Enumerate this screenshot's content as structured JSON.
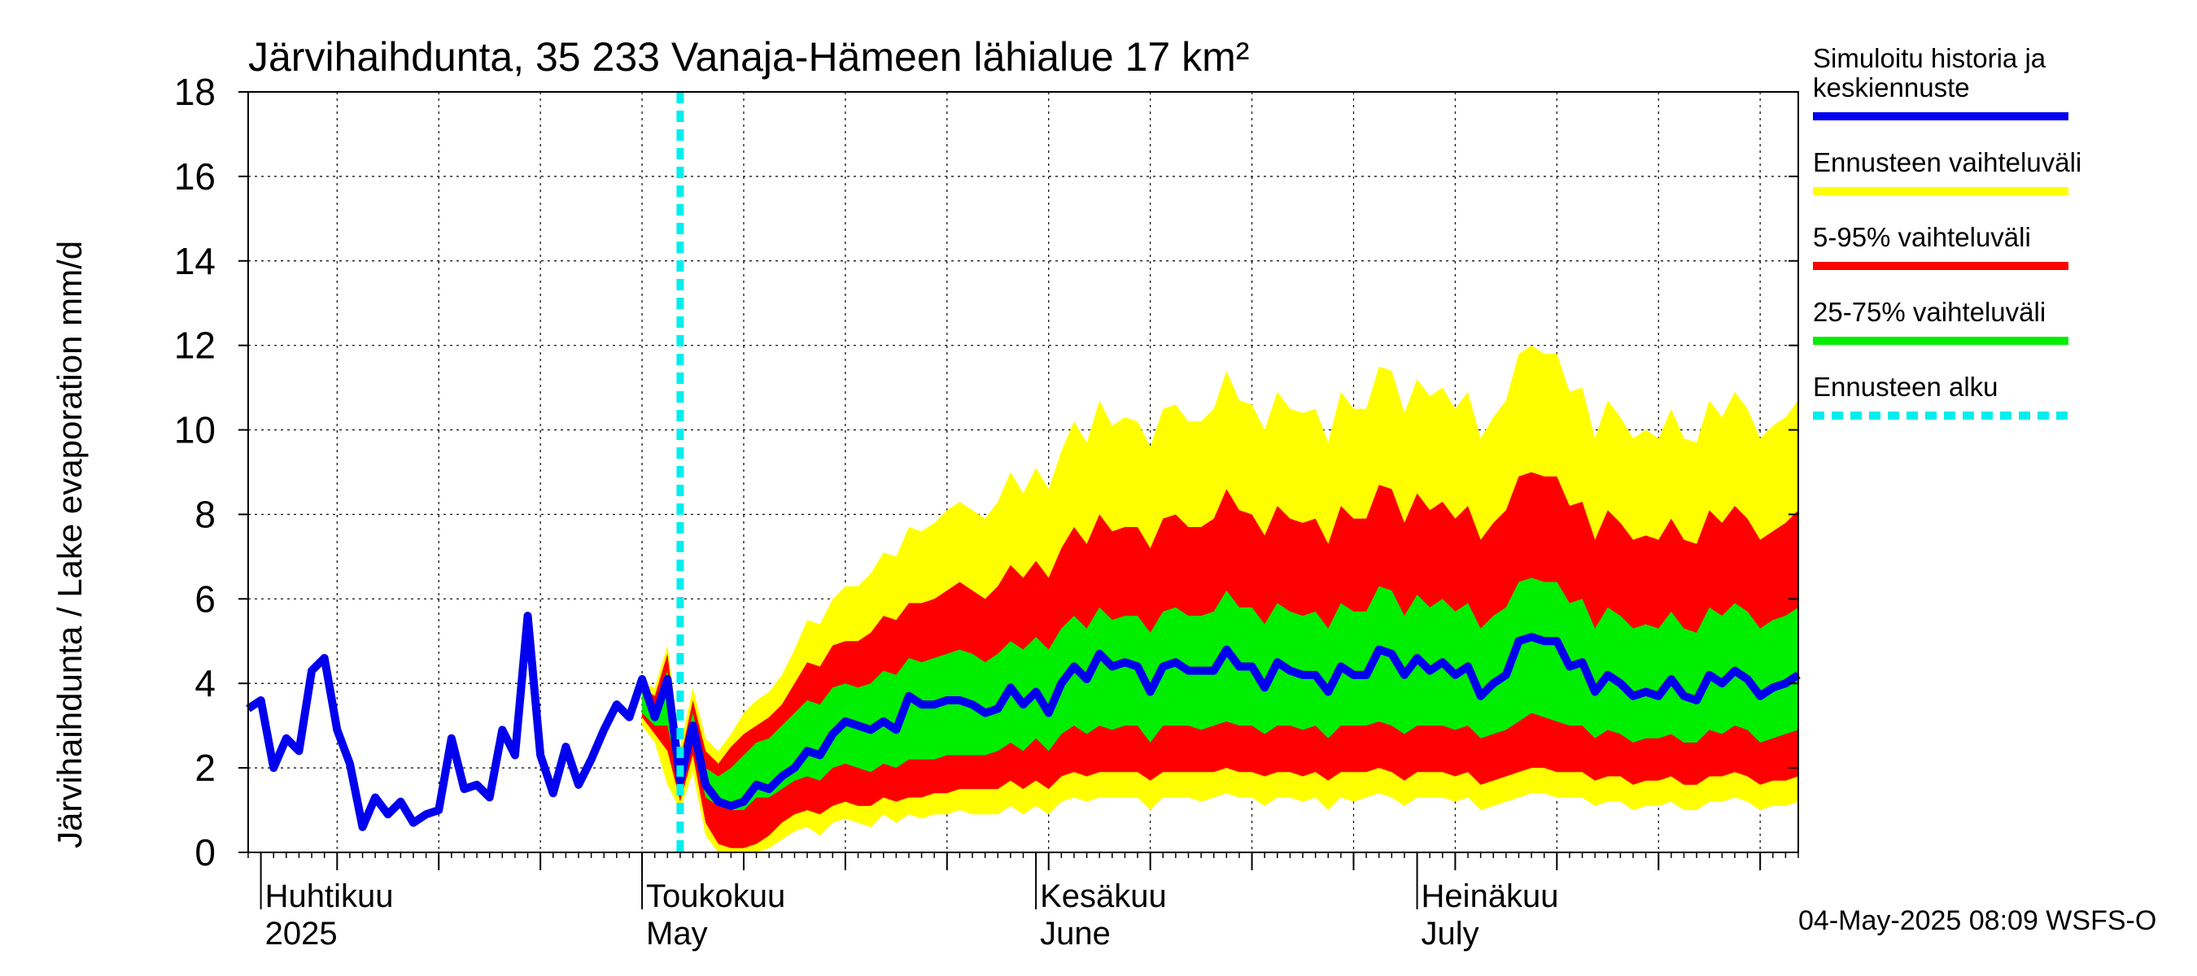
{
  "chart_data": {
    "type": "area",
    "title": "Järvihaihdunta, 35 233 Vanaja-Hämeen lähialue 17 km²",
    "ylabel": "Järvihaihdunta / Lake evaporation   mm/d",
    "xlabel": "",
    "ylim": [
      0,
      18
    ],
    "yticks": [
      0,
      2,
      4,
      6,
      8,
      10,
      12,
      14,
      16,
      18
    ],
    "xlim": [
      "2025-03-31",
      "2025-07-31"
    ],
    "grid": true,
    "legend_position": "right",
    "month_labels": [
      {
        "date": "2025-04-01",
        "fi": "Huhtikuu",
        "en": "2025"
      },
      {
        "date": "2025-05-01",
        "fi": "Toukokuu",
        "en": "May"
      },
      {
        "date": "2025-06-01",
        "fi": "Kesäkuu",
        "en": "June"
      },
      {
        "date": "2025-07-01",
        "fi": "Heinäkuu",
        "en": "July"
      }
    ],
    "forecast_start": "2025-05-04",
    "timestamp": "04-May-2025 08:09 WSFS-O",
    "colors": {
      "history": "#0000ee",
      "full_range": "#ffff00",
      "p5_95": "#ff0000",
      "p25_75": "#00ee00",
      "forecast_start": "#00eeee"
    },
    "legend": [
      {
        "key": "history",
        "label_lines": [
          "Simuloitu historia ja",
          "keskiennuste"
        ],
        "style": "line"
      },
      {
        "key": "full_range",
        "label_lines": [
          "Ennusteen vaihteluväli"
        ],
        "style": "line"
      },
      {
        "key": "p5_95",
        "label_lines": [
          "5-95% vaihteluväli"
        ],
        "style": "line"
      },
      {
        "key": "p25_75",
        "label_lines": [
          "25-75% vaihteluväli"
        ],
        "style": "line"
      },
      {
        "key": "forecast_start",
        "label_lines": [
          "Ennusteen alku"
        ],
        "style": "dashed"
      }
    ],
    "history": {
      "start_date": "2025-03-31",
      "values": [
        3.4,
        3.6,
        2.0,
        2.7,
        2.4,
        4.3,
        4.6,
        2.9,
        2.1,
        0.6,
        1.3,
        0.9,
        1.2,
        0.7,
        0.9,
        1.0,
        2.7,
        1.5,
        1.6,
        1.3,
        2.9,
        2.3,
        5.6,
        2.3,
        1.4,
        2.5,
        1.6,
        2.2,
        2.9,
        3.5,
        3.2,
        4.1
      ]
    },
    "forecast": {
      "start_date": "2025-05-01",
      "mean": [
        3.5,
        3.2,
        4.1,
        1.7,
        3.0,
        1.6,
        1.2,
        1.1,
        1.2,
        1.6,
        1.5,
        1.8,
        2.0,
        2.4,
        2.3,
        2.8,
        3.1,
        3.0,
        2.9,
        3.1,
        2.9,
        3.7,
        3.5,
        3.5,
        3.6,
        3.6,
        3.5,
        3.3,
        3.4,
        3.9,
        3.5,
        3.8,
        3.3,
        4.0,
        4.4,
        4.1,
        4.7,
        4.4,
        4.5,
        4.4,
        3.8,
        4.4,
        4.5,
        4.3,
        4.3,
        4.3,
        4.8,
        4.4,
        4.4,
        3.9,
        4.5,
        4.3,
        4.2,
        4.2,
        3.8,
        4.4,
        4.2,
        4.2,
        4.8,
        4.7,
        4.2,
        4.6,
        4.3,
        4.5,
        4.2,
        4.4,
        3.7,
        4.0,
        4.2,
        5.0,
        5.1,
        5.0,
        5.0,
        4.4,
        4.5,
        3.8,
        4.2,
        4.0,
        3.7,
        3.8,
        3.7,
        4.1,
        3.7,
        3.6,
        4.2,
        4.0,
        4.3,
        4.1,
        3.7,
        3.9,
        4.0,
        4.2
      ],
      "p25": [
        3.3,
        3.0,
        3.0,
        1.6,
        2.6,
        1.3,
        1.1,
        1.0,
        1.0,
        1.3,
        1.3,
        1.5,
        1.7,
        1.8,
        1.7,
        2.0,
        2.1,
        2.0,
        1.9,
        2.1,
        2.0,
        2.2,
        2.2,
        2.2,
        2.3,
        2.3,
        2.3,
        2.3,
        2.4,
        2.6,
        2.4,
        2.7,
        2.4,
        2.8,
        3.0,
        2.8,
        3.0,
        2.9,
        3.0,
        3.0,
        2.6,
        3.0,
        3.0,
        3.0,
        2.9,
        3.0,
        3.1,
        3.0,
        3.0,
        2.8,
        3.0,
        3.0,
        2.9,
        3.0,
        2.7,
        3.0,
        3.0,
        3.0,
        3.1,
        3.0,
        2.8,
        3.0,
        3.0,
        3.0,
        2.9,
        3.0,
        2.7,
        2.8,
        2.9,
        3.1,
        3.3,
        3.2,
        3.1,
        3.0,
        3.0,
        2.7,
        2.9,
        2.8,
        2.6,
        2.7,
        2.7,
        2.8,
        2.6,
        2.6,
        2.9,
        2.8,
        3.0,
        2.9,
        2.6,
        2.7,
        2.8,
        2.9
      ],
      "p75": [
        3.8,
        3.5,
        4.3,
        2.0,
        3.3,
        2.0,
        1.8,
        2.0,
        2.3,
        2.6,
        2.7,
        3.0,
        3.3,
        3.6,
        3.5,
        3.9,
        4.0,
        3.9,
        4.0,
        4.3,
        4.2,
        4.6,
        4.5,
        4.6,
        4.7,
        4.8,
        4.7,
        4.5,
        4.7,
        5.0,
        4.8,
        5.1,
        4.8,
        5.3,
        5.6,
        5.3,
        5.8,
        5.5,
        5.6,
        5.6,
        5.2,
        5.7,
        5.8,
        5.6,
        5.6,
        5.7,
        6.2,
        5.8,
        5.8,
        5.4,
        5.9,
        5.7,
        5.6,
        5.7,
        5.3,
        5.9,
        5.7,
        5.7,
        6.3,
        6.2,
        5.6,
        6.1,
        5.8,
        6.0,
        5.7,
        5.9,
        5.3,
        5.6,
        5.8,
        6.4,
        6.5,
        6.4,
        6.4,
        5.9,
        6.0,
        5.3,
        5.8,
        5.6,
        5.3,
        5.4,
        5.3,
        5.7,
        5.3,
        5.2,
        5.8,
        5.6,
        5.9,
        5.7,
        5.3,
        5.5,
        5.6,
        5.8
      ],
      "p5": [
        3.2,
        2.8,
        2.4,
        1.2,
        2.3,
        0.7,
        0.2,
        0.1,
        0.1,
        0.2,
        0.4,
        0.7,
        0.9,
        1.0,
        0.9,
        1.1,
        1.2,
        1.1,
        1.1,
        1.3,
        1.2,
        1.3,
        1.3,
        1.4,
        1.4,
        1.5,
        1.5,
        1.5,
        1.5,
        1.7,
        1.5,
        1.7,
        1.5,
        1.8,
        1.9,
        1.8,
        1.9,
        1.9,
        1.9,
        1.9,
        1.7,
        1.9,
        1.9,
        1.9,
        1.9,
        1.9,
        2.0,
        1.9,
        1.9,
        1.8,
        1.9,
        1.9,
        1.8,
        1.9,
        1.7,
        1.9,
        1.9,
        1.9,
        2.0,
        1.9,
        1.7,
        1.9,
        1.9,
        1.9,
        1.8,
        1.9,
        1.6,
        1.7,
        1.8,
        1.9,
        2.0,
        2.0,
        1.9,
        1.9,
        1.9,
        1.7,
        1.8,
        1.8,
        1.6,
        1.7,
        1.7,
        1.8,
        1.6,
        1.6,
        1.8,
        1.8,
        1.9,
        1.8,
        1.6,
        1.7,
        1.7,
        1.8
      ],
      "p95": [
        3.9,
        3.7,
        4.7,
        2.2,
        3.6,
        2.4,
        2.1,
        2.5,
        2.8,
        3.0,
        3.2,
        3.5,
        4.0,
        4.5,
        4.4,
        4.9,
        5.0,
        5.0,
        5.2,
        5.6,
        5.5,
        5.9,
        5.9,
        6.0,
        6.2,
        6.4,
        6.2,
        6.0,
        6.3,
        6.8,
        6.5,
        6.9,
        6.5,
        7.2,
        7.7,
        7.3,
        8.0,
        7.6,
        7.7,
        7.7,
        7.2,
        7.9,
        8.0,
        7.7,
        7.7,
        7.9,
        8.6,
        8.1,
        8.0,
        7.5,
        8.2,
        7.9,
        7.8,
        7.9,
        7.3,
        8.2,
        7.9,
        7.9,
        8.7,
        8.6,
        7.8,
        8.5,
        8.1,
        8.3,
        7.9,
        8.2,
        7.4,
        7.8,
        8.1,
        8.9,
        9.0,
        8.9,
        8.9,
        8.2,
        8.3,
        7.4,
        8.1,
        7.8,
        7.4,
        7.5,
        7.4,
        7.9,
        7.4,
        7.3,
        8.1,
        7.8,
        8.2,
        7.9,
        7.4,
        7.6,
        7.8,
        8.1
      ],
      "min": [
        3.0,
        2.6,
        1.6,
        1.0,
        1.9,
        0.4,
        0.0,
        0.0,
        0.0,
        0.0,
        0.1,
        0.3,
        0.5,
        0.6,
        0.4,
        0.7,
        0.8,
        0.7,
        0.6,
        0.9,
        0.7,
        0.9,
        0.8,
        0.9,
        0.9,
        1.0,
        0.9,
        0.9,
        0.9,
        1.1,
        0.9,
        1.1,
        0.9,
        1.2,
        1.3,
        1.2,
        1.3,
        1.3,
        1.3,
        1.3,
        1.0,
        1.3,
        1.3,
        1.3,
        1.2,
        1.3,
        1.4,
        1.3,
        1.3,
        1.1,
        1.3,
        1.3,
        1.2,
        1.3,
        1.0,
        1.3,
        1.2,
        1.3,
        1.4,
        1.3,
        1.1,
        1.3,
        1.3,
        1.3,
        1.2,
        1.3,
        1.0,
        1.1,
        1.2,
        1.3,
        1.4,
        1.4,
        1.3,
        1.3,
        1.3,
        1.1,
        1.2,
        1.2,
        1.0,
        1.1,
        1.1,
        1.2,
        1.0,
        1.0,
        1.2,
        1.2,
        1.3,
        1.2,
        1.0,
        1.1,
        1.1,
        1.2
      ],
      "max": [
        4.0,
        3.9,
        4.9,
        2.5,
        3.9,
        2.7,
        2.4,
        2.8,
        3.3,
        3.6,
        3.8,
        4.2,
        4.8,
        5.5,
        5.4,
        6.0,
        6.3,
        6.3,
        6.6,
        7.1,
        7.0,
        7.7,
        7.6,
        7.8,
        8.1,
        8.3,
        8.1,
        7.9,
        8.3,
        9.0,
        8.5,
        9.1,
        8.6,
        9.5,
        10.2,
        9.7,
        10.7,
        10.1,
        10.3,
        10.2,
        9.6,
        10.5,
        10.6,
        10.2,
        10.2,
        10.5,
        11.4,
        10.7,
        10.6,
        10.0,
        10.9,
        10.5,
        10.4,
        10.5,
        9.7,
        10.9,
        10.5,
        10.5,
        11.5,
        11.4,
        10.4,
        11.2,
        10.8,
        11.0,
        10.5,
        10.9,
        9.8,
        10.3,
        10.7,
        11.8,
        12.0,
        11.8,
        11.8,
        10.9,
        11.0,
        9.8,
        10.7,
        10.3,
        9.8,
        10.0,
        9.8,
        10.5,
        9.8,
        9.7,
        10.7,
        10.3,
        10.9,
        10.5,
        9.8,
        10.1,
        10.3,
        10.7
      ]
    }
  }
}
